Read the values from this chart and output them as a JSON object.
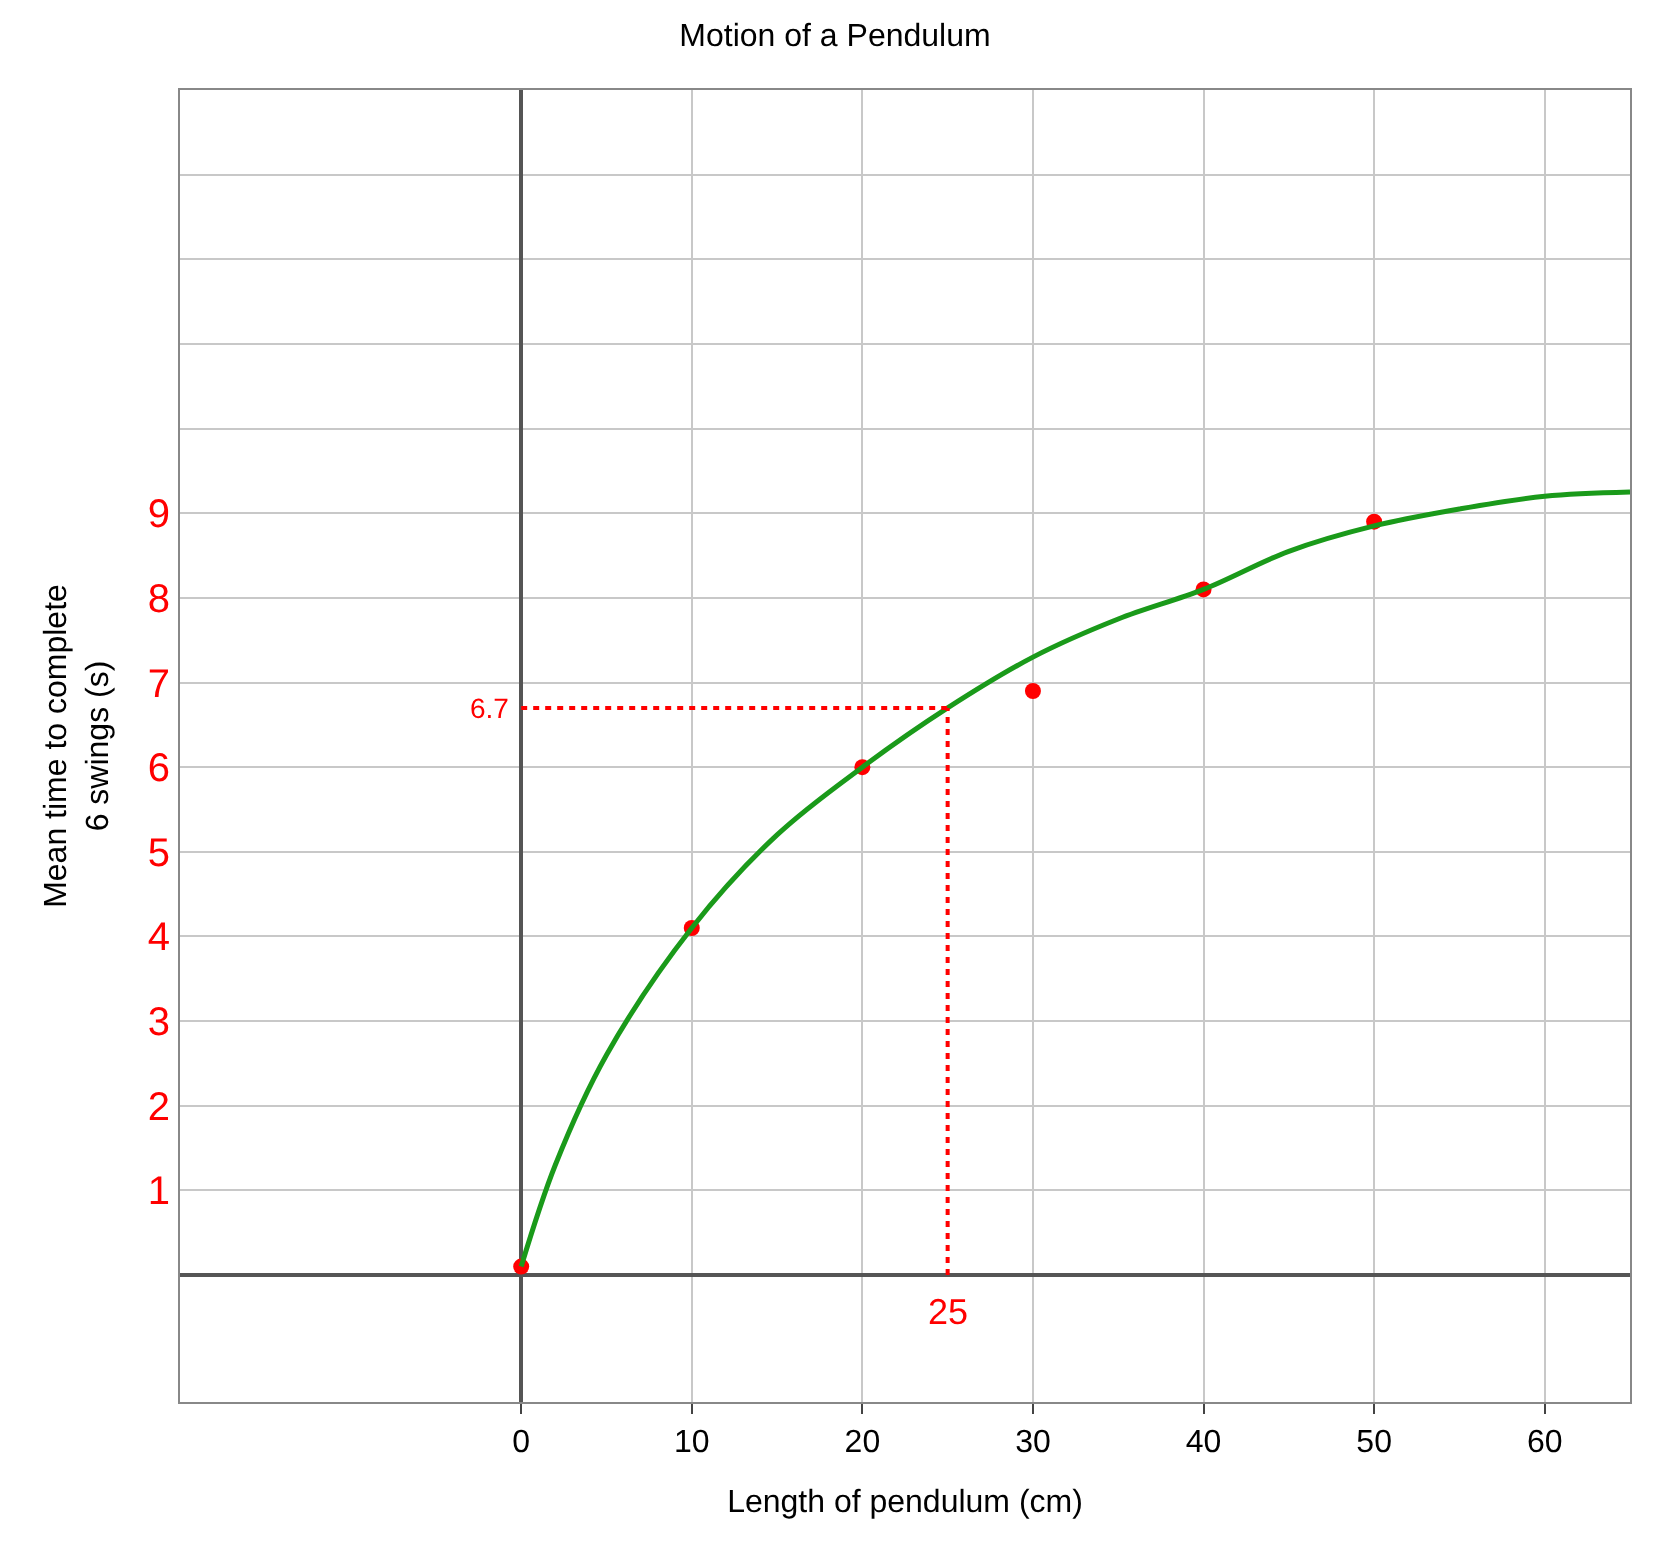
{
  "chart_data": {
    "type": "scatter",
    "title": "Motion of a Pendulum",
    "xlabel": "Length of pendulum (cm)",
    "ylabel": "Mean time to complete\n6 swings (s)",
    "xlim": [
      -20,
      65
    ],
    "xticks": [
      0,
      10,
      20,
      30,
      40,
      50,
      60
    ],
    "ylim": [
      -1.5,
      14
    ],
    "yticks": [
      1,
      2,
      3,
      4,
      5,
      6,
      7,
      8,
      9,
      {
        "value": 10,
        "label": null
      },
      {
        "value": 11,
        "label": null
      },
      {
        "value": 12,
        "label": null
      },
      {
        "value": 13,
        "label": null
      }
    ],
    "grid": true,
    "legend": false,
    "marker": "circle",
    "series": [
      {
        "color": "#ff0000",
        "x": [
          0,
          10,
          20,
          30,
          40,
          50
        ],
        "values": [
          0.1,
          4.1,
          6.0,
          6.9,
          8.1,
          8.9
        ]
      },
      {
        "type": "line",
        "color": "#1a9a1a",
        "line_style": "solid",
        "marker": "none",
        "x": [
          0,
          2,
          5,
          10,
          15,
          20,
          25,
          30,
          35,
          40,
          45,
          50,
          55,
          60,
          65
        ],
        "values": [
          0.1,
          1.3,
          2.6,
          4.1,
          5.2,
          6.0,
          6.7,
          7.3,
          7.75,
          8.1,
          8.55,
          8.85,
          9.05,
          9.2,
          9.25
        ]
      }
    ],
    "ref_lines": [
      {
        "axis": "x",
        "value": 25,
        "label": "25",
        "color": "#ff0000",
        "line_style": "dotted"
      },
      {
        "axis": "y",
        "value": 6.7,
        "label": "6.7",
        "color": "#ff0000",
        "line_style": "dotted"
      }
    ]
  }
}
